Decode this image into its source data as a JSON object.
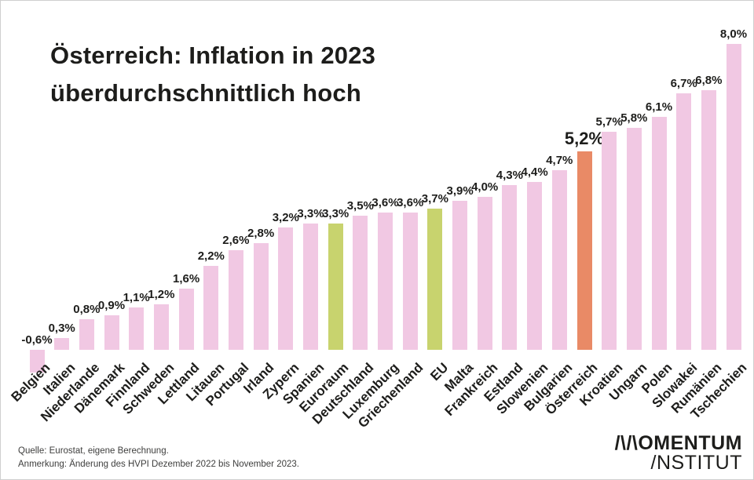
{
  "header": {
    "title_line1": "Österreich: Inflation in 2023",
    "title_line2": "überdurchschnittlich hoch"
  },
  "footer": {
    "source": "Quelle: Eurostat, eigene Berechnung.",
    "note": "Anmerkung: Änderung des HVPI Dezember 2022 bis November 2023."
  },
  "logo": {
    "line1": "/\\/\\OMENTUM",
    "line2": "/NSTITUT"
  },
  "colors": {
    "bar_default": "#F1C8E3",
    "bar_aggregate": "#C8D36E",
    "bar_highlight": "#E98A66",
    "text": "#1D1D1B",
    "footer_text": "#3E3E3D"
  },
  "chart_data": {
    "type": "bar",
    "title": "Österreich: Inflation in 2023 überdurchschnittlich hoch",
    "xlabel": "",
    "ylabel": "",
    "ylim": [
      -0.7,
      8.2
    ],
    "grid": false,
    "legend": false,
    "value_format": "german_percent",
    "bars": [
      {
        "name": "Belgien",
        "value": -0.6,
        "label": "-0,6%",
        "color": "default",
        "highlight": false
      },
      {
        "name": "Italien",
        "value": 0.3,
        "label": "0,3%",
        "color": "default",
        "highlight": false
      },
      {
        "name": "Niederlande",
        "value": 0.8,
        "label": "0,8%",
        "color": "default",
        "highlight": false
      },
      {
        "name": "Dänemark",
        "value": 0.9,
        "label": "0,9%",
        "color": "default",
        "highlight": false
      },
      {
        "name": "Finnland",
        "value": 1.1,
        "label": "1,1%",
        "color": "default",
        "highlight": false
      },
      {
        "name": "Schweden",
        "value": 1.2,
        "label": "1,2%",
        "color": "default",
        "highlight": false
      },
      {
        "name": "Lettland",
        "value": 1.6,
        "label": "1,6%",
        "color": "default",
        "highlight": false
      },
      {
        "name": "Litauen",
        "value": 2.2,
        "label": "2,2%",
        "color": "default",
        "highlight": false
      },
      {
        "name": "Portugal",
        "value": 2.6,
        "label": "2,6%",
        "color": "default",
        "highlight": false
      },
      {
        "name": "Irland",
        "value": 2.8,
        "label": "2,8%",
        "color": "default",
        "highlight": false
      },
      {
        "name": "Zypern",
        "value": 3.2,
        "label": "3,2%",
        "color": "default",
        "highlight": false
      },
      {
        "name": "Spanien",
        "value": 3.3,
        "label": "3,3%",
        "color": "default",
        "highlight": false
      },
      {
        "name": "Euroraum",
        "value": 3.3,
        "label": "3,3%",
        "color": "aggregate",
        "highlight": false
      },
      {
        "name": "Deutschland",
        "value": 3.5,
        "label": "3,5%",
        "color": "default",
        "highlight": false
      },
      {
        "name": "Luxemburg",
        "value": 3.6,
        "label": "3,6%",
        "color": "default",
        "highlight": false
      },
      {
        "name": "Griechenland",
        "value": 3.6,
        "label": "3,6%",
        "color": "default",
        "highlight": false
      },
      {
        "name": "EU",
        "value": 3.7,
        "label": "3,7%",
        "color": "aggregate",
        "highlight": false
      },
      {
        "name": "Malta",
        "value": 3.9,
        "label": "3,9%",
        "color": "default",
        "highlight": false
      },
      {
        "name": "Frankreich",
        "value": 4.0,
        "label": "4,0%",
        "color": "default",
        "highlight": false
      },
      {
        "name": "Estland",
        "value": 4.3,
        "label": "4,3%",
        "color": "default",
        "highlight": false
      },
      {
        "name": "Slowenien",
        "value": 4.4,
        "label": "4,4%",
        "color": "default",
        "highlight": false
      },
      {
        "name": "Bulgarien",
        "value": 4.7,
        "label": "4,7%",
        "color": "default",
        "highlight": false
      },
      {
        "name": "Österreich",
        "value": 5.2,
        "label": "5,2%",
        "color": "highlight",
        "highlight": true
      },
      {
        "name": "Kroatien",
        "value": 5.7,
        "label": "5,7%",
        "color": "default",
        "highlight": false
      },
      {
        "name": "Ungarn",
        "value": 5.8,
        "label": "5,8%",
        "color": "default",
        "highlight": false
      },
      {
        "name": "Polen",
        "value": 6.1,
        "label": "6,1%",
        "color": "default",
        "highlight": false
      },
      {
        "name": "Slowakei",
        "value": 6.7,
        "label": "6,7%",
        "color": "default",
        "highlight": false
      },
      {
        "name": "Rumänien",
        "value": 6.8,
        "label": "6,8%",
        "color": "default",
        "highlight": false
      },
      {
        "name": "Tschechien",
        "value": 8.0,
        "label": "8,0%",
        "color": "default",
        "highlight": false
      }
    ]
  }
}
